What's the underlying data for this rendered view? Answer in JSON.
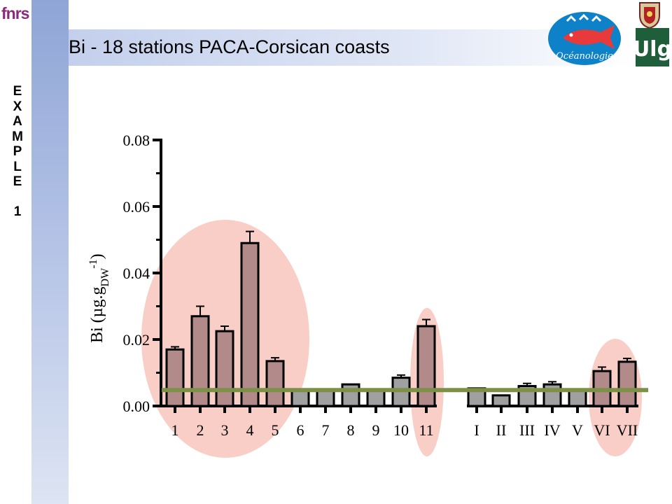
{
  "slide": {
    "title": "Bi - 18 stations PACA-Corsican coasts",
    "side_label": [
      "E",
      "X",
      "A",
      "M",
      "P",
      "L",
      "E",
      "",
      "1"
    ],
    "fnrs_logo_text": "fnrs",
    "ocean_logo_text": "Océanologie",
    "ulg_logo_text": "Ulg"
  },
  "colors": {
    "highlight_bar": "#b38a8a",
    "normal_bar": "#a0a0a0",
    "highlight_ellipse": "#f9cec6",
    "threshold_line": "#7c9147",
    "side_bar": "#9fb2dd"
  },
  "chart_data": {
    "type": "bar",
    "title": "",
    "ylabel_main": "Bi (µg.g",
    "ylabel_sub": "DW",
    "ylabel_sup": "-1",
    "ylabel_close": ")",
    "ylim": [
      0,
      0.08
    ],
    "yticks": [
      "0.00",
      "0.02",
      "0.04",
      "0.06",
      "0.08"
    ],
    "categories": [
      "1",
      "2",
      "3",
      "4",
      "5",
      "6",
      "7",
      "8",
      "9",
      "10",
      "11",
      "I",
      "II",
      "III",
      "IV",
      "V",
      "VI",
      "VII"
    ],
    "values": [
      0.017,
      0.027,
      0.0225,
      0.049,
      0.0135,
      0.005,
      0.005,
      0.0065,
      0.005,
      0.0085,
      0.024,
      0.0053,
      0.0032,
      0.006,
      0.0065,
      0.005,
      0.0105,
      0.0133
    ],
    "errors": [
      0.0008,
      0.003,
      0.0015,
      0.0035,
      0.001,
      0.0002,
      0.0002,
      0.0003,
      0.0003,
      0.0008,
      0.002,
      0.0002,
      0.0002,
      0.0008,
      0.0008,
      0.0002,
      0.0012,
      0.001
    ],
    "highlighted": [
      true,
      true,
      true,
      true,
      true,
      false,
      false,
      false,
      false,
      false,
      true,
      false,
      false,
      false,
      false,
      false,
      true,
      true
    ],
    "threshold": 0.0048,
    "grid": false,
    "legend": "none"
  }
}
